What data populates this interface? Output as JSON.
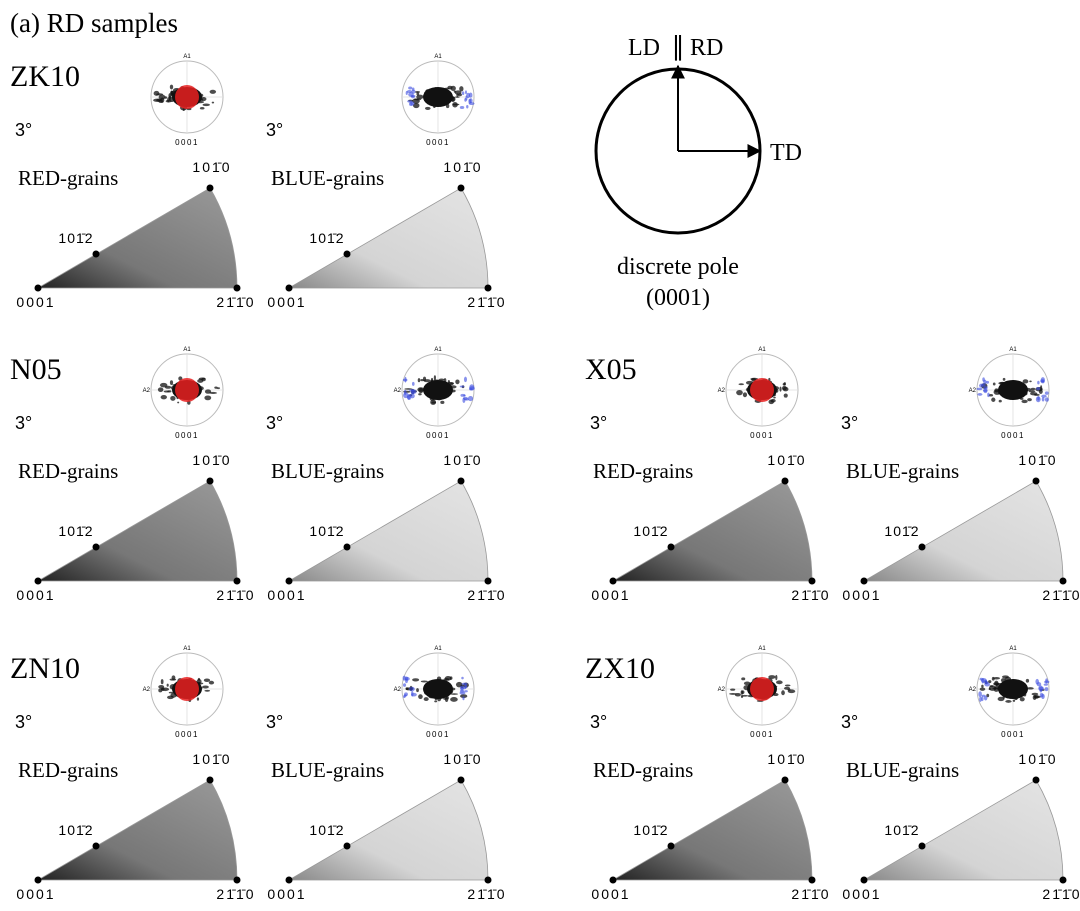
{
  "header": {
    "title": "(a) RD samples"
  },
  "legend": {
    "ld": "LD",
    "parallel": "∥",
    "rd": "RD",
    "td": "TD",
    "caption_line1": "discrete pole",
    "caption_line2": "(0001)"
  },
  "samples": [
    {
      "name": "ZK10",
      "panels": [
        {
          "angle": "3°",
          "label": "RED-grains",
          "marker_color": "#e82020",
          "pole": {
            "a1": "A1",
            "bottom": "0001"
          },
          "triangle": {
            "top": "101̄0",
            "mid": "101̄2",
            "origin": "0001",
            "right": "21̄1̄0"
          }
        },
        {
          "angle": "3°",
          "label": "BLUE-grains",
          "marker_color": "#3a4be0",
          "pole": {
            "a1": "A1",
            "bottom": "0001"
          },
          "triangle": {
            "top": "101̄0",
            "mid": "101̄2",
            "origin": "0001",
            "right": "21̄1̄0"
          }
        }
      ]
    },
    {
      "name": "N05",
      "panels": [
        {
          "angle": "3°",
          "label": "RED-grains",
          "marker_color": "#e82020",
          "pole": {
            "a1": "A1",
            "a2": "A2",
            "bottom": "0001"
          },
          "triangle": {
            "top": "101̄0",
            "mid": "101̄2",
            "origin": "0001",
            "right": "21̄1̄0"
          }
        },
        {
          "angle": "3°",
          "label": "BLUE-grains",
          "marker_color": "#3a4be0",
          "pole": {
            "a1": "A1",
            "a2": "A2",
            "bottom": "0001"
          },
          "triangle": {
            "top": "101̄0",
            "mid": "101̄2",
            "origin": "0001",
            "right": "21̄1̄0"
          }
        }
      ]
    },
    {
      "name": "X05",
      "panels": [
        {
          "angle": "3°",
          "label": "RED-grains",
          "marker_color": "#e82020",
          "pole": {
            "a1": "A1",
            "a2": "A2",
            "bottom": "0001"
          },
          "triangle": {
            "top": "101̄0",
            "mid": "101̄2",
            "origin": "0001",
            "right": "21̄1̄0"
          }
        },
        {
          "angle": "3°",
          "label": "BLUE-grains",
          "marker_color": "#3a4be0",
          "pole": {
            "a1": "A1",
            "a2": "A2",
            "bottom": "0001"
          },
          "triangle": {
            "top": "101̄0",
            "mid": "101̄2",
            "origin": "0001",
            "right": "21̄1̄0"
          }
        }
      ]
    },
    {
      "name": "ZN10",
      "panels": [
        {
          "angle": "3°",
          "label": "RED-grains",
          "marker_color": "#e82020",
          "pole": {
            "a1": "A1",
            "a2": "A2",
            "bottom": "0001"
          },
          "triangle": {
            "top": "101̄0",
            "mid": "101̄2",
            "origin": "0001",
            "right": "21̄1̄0"
          }
        },
        {
          "angle": "3°",
          "label": "BLUE-grains",
          "marker_color": "#3a4be0",
          "pole": {
            "a1": "A1",
            "a2": "A2",
            "bottom": "0001"
          },
          "triangle": {
            "top": "101̄0",
            "mid": "101̄2",
            "origin": "0001",
            "right": "21̄1̄0"
          }
        }
      ]
    },
    {
      "name": "ZX10",
      "panels": [
        {
          "angle": "3°",
          "label": "RED-grains",
          "marker_color": "#e82020",
          "pole": {
            "a1": "A1",
            "a2": "A2",
            "bottom": "0001"
          },
          "triangle": {
            "top": "101̄0",
            "mid": "101̄2",
            "origin": "0001",
            "right": "21̄1̄0"
          }
        },
        {
          "angle": "3°",
          "label": "BLUE-grains",
          "marker_color": "#3a4be0",
          "pole": {
            "a1": "A1",
            "a2": "A2",
            "bottom": "0001"
          },
          "triangle": {
            "top": "101̄0",
            "mid": "101̄2",
            "origin": "0001",
            "right": "21̄1̄0"
          }
        }
      ]
    }
  ]
}
